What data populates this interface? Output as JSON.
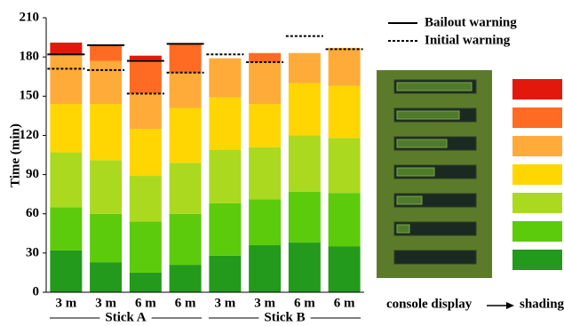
{
  "chart_data": {
    "type": "stacked_bar",
    "y_label": "Time (min)",
    "categories": [
      "3 m",
      "3 m",
      "6 m",
      "6 m",
      "3 m",
      "3 m",
      "6 m",
      "6 m"
    ],
    "groups": [
      {
        "label": "Stick A",
        "span": [
          0,
          3
        ]
      },
      {
        "label": "Stick B",
        "span": [
          4,
          7
        ]
      }
    ],
    "ylim": [
      0,
      210
    ],
    "yticks": [
      0,
      30,
      60,
      90,
      120,
      150,
      180,
      210
    ],
    "series": [
      {
        "color": "#239a1b",
        "values": [
          32,
          23,
          15,
          21,
          28,
          36,
          38,
          35
        ]
      },
      {
        "color": "#5ccb0c",
        "values": [
          33,
          37,
          39,
          39,
          40,
          35,
          39,
          41
        ]
      },
      {
        "color": "#abd920",
        "values": [
          42,
          41,
          35,
          39,
          41,
          40,
          43,
          42
        ]
      },
      {
        "color": "#ffd602",
        "values": [
          37,
          43,
          36,
          42,
          40,
          33,
          40,
          40
        ]
      },
      {
        "color": "#ffab3a",
        "values": [
          38,
          33,
          27,
          27,
          30,
          32,
          23,
          29
        ]
      },
      {
        "color": "#ff6b22",
        "values": [
          0,
          12,
          26,
          22,
          0,
          7,
          0,
          0
        ]
      },
      {
        "color": "#e3180c",
        "values": [
          9,
          0,
          3,
          0,
          0,
          0,
          0,
          0
        ]
      }
    ],
    "markers": [
      {
        "name": "Bailout warning",
        "style": "solid",
        "values": [
          182,
          189,
          177,
          190,
          null,
          null,
          null,
          null
        ]
      },
      {
        "name": "Initial warning",
        "style": "dotted",
        "values": [
          171,
          170,
          152,
          168,
          182,
          176,
          196,
          186
        ]
      }
    ],
    "panel_caption": "console display",
    "shading_caption": "shading"
  }
}
